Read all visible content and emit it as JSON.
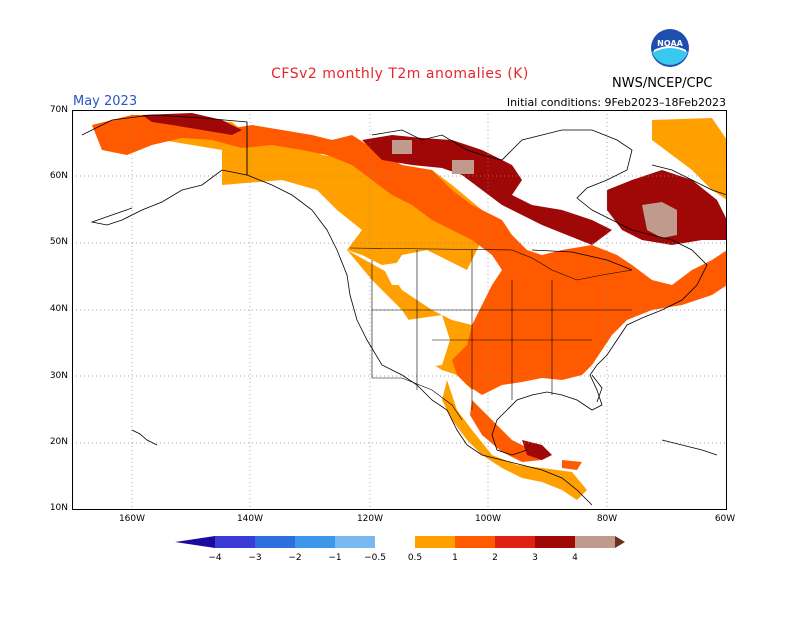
{
  "title": "CFSv2 monthly T2m anomalies (K)",
  "org": "NWS/NCEP/CPC",
  "month": "May 2023",
  "initial_conditions": "Initial conditions: 9Feb2023–18Feb2023",
  "logo_text": "NOAA",
  "lat_labels": [
    "70N",
    "60N",
    "50N",
    "40N",
    "30N",
    "20N",
    "10N"
  ],
  "lon_labels": [
    "160W",
    "140W",
    "120W",
    "100W",
    "80W",
    "60W"
  ],
  "colorbar": {
    "labels": [
      "−4",
      "−3",
      "−2",
      "−1",
      "−0.5",
      "0.5",
      "1",
      "2",
      "3",
      "4"
    ],
    "colors": {
      "lt_neg4": "#1a0aa0",
      "neg4_neg3": "#3b3bd6",
      "neg3_neg2": "#2e6fe0",
      "neg2_neg1": "#3c96ea",
      "neg1_neg05": "#7ab8f2",
      "pos05_1": "#ffa000",
      "pos1_2": "#ff5a00",
      "pos2_3": "#e02010",
      "pos3_4": "#a00808",
      "pos4_5": "#c09a8c",
      "gt_5": "#6a3020"
    }
  },
  "colors": {
    "title": "#e8262a",
    "month": "#2a55c8"
  }
}
